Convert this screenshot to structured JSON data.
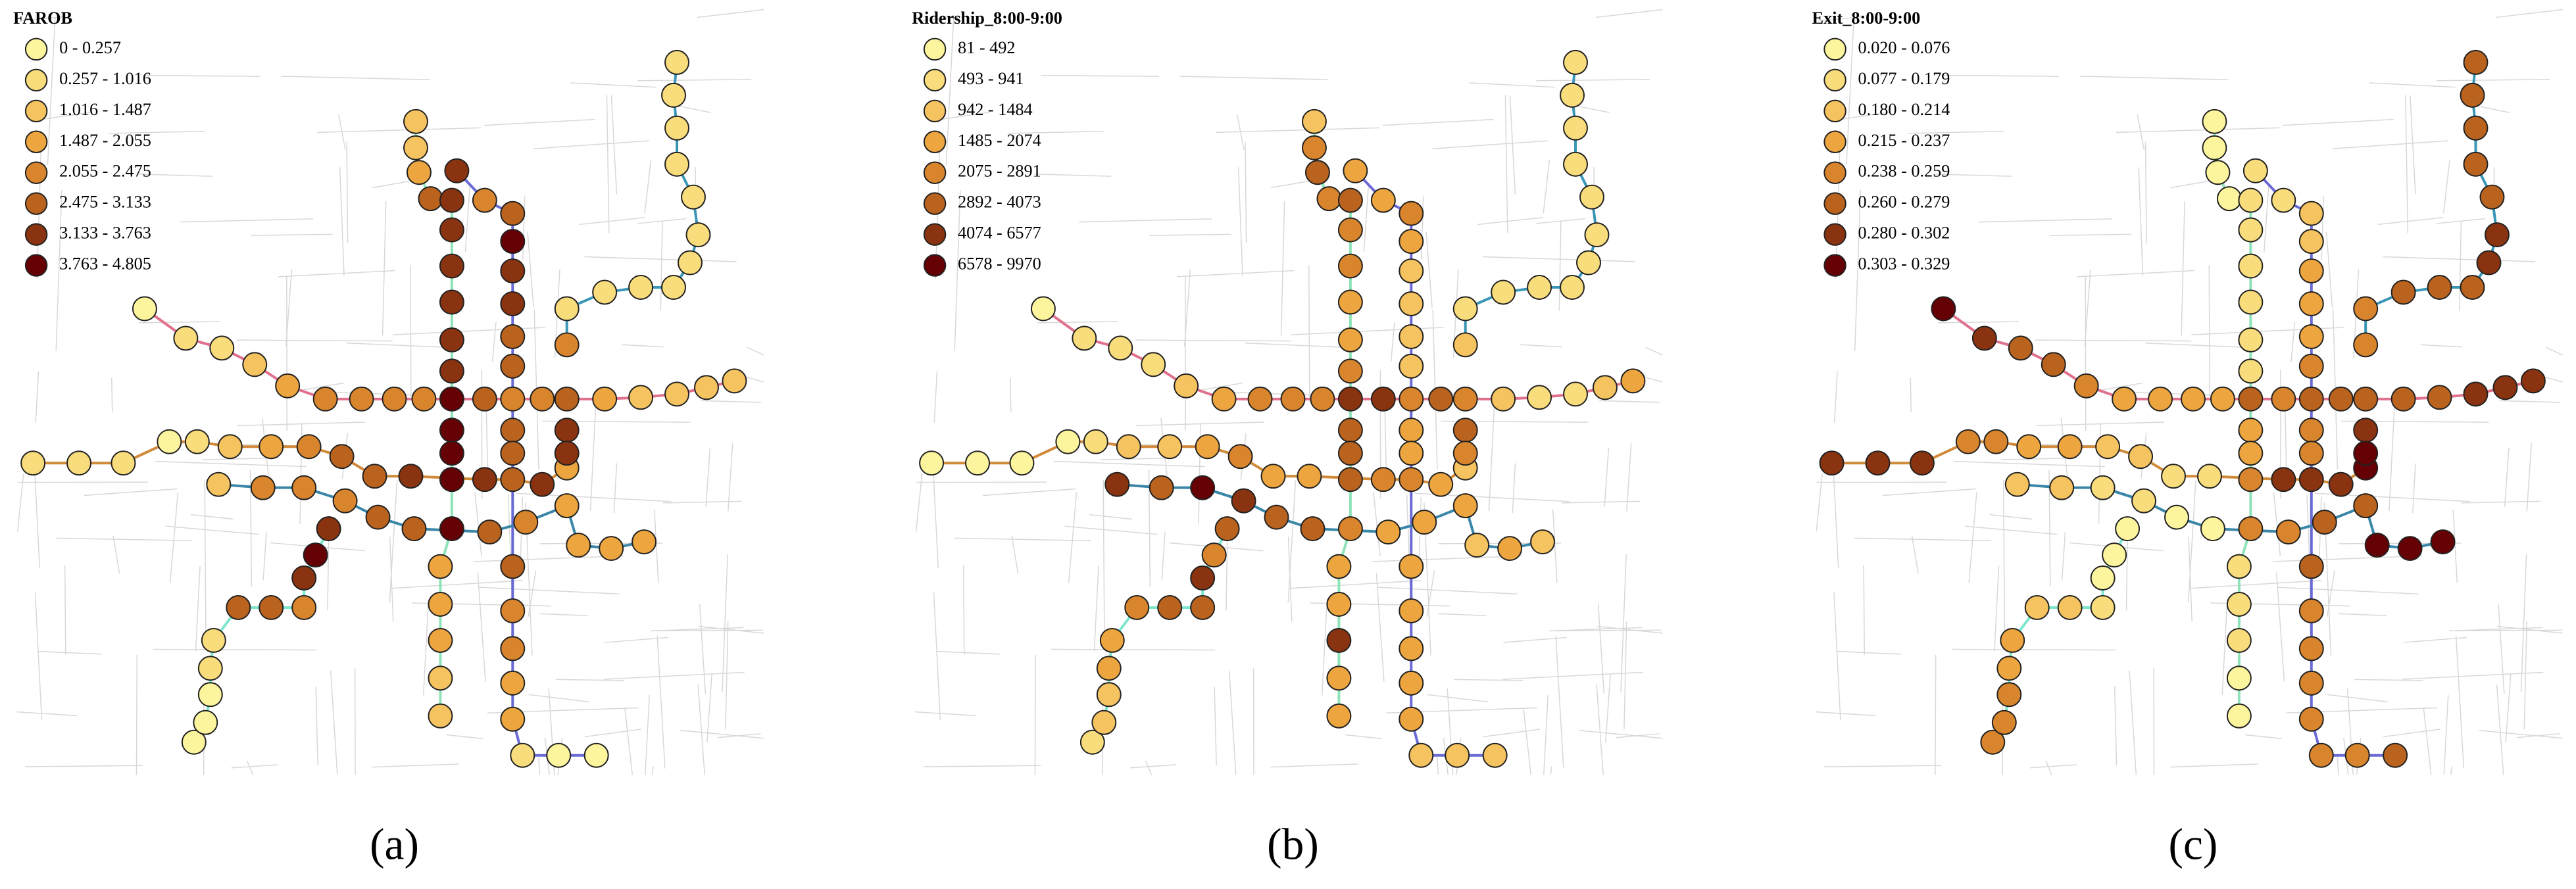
{
  "panels": [
    {
      "legend": {
        "title": "FAROB",
        "classes": [
          "0 - 0.257",
          "0.257 - 1.016",
          "1.016 - 1.487",
          "1.487 - 2.055",
          "2.055 - 2.475",
          "2.475 - 3.133",
          "3.133 - 3.763",
          "3.763 - 4.805"
        ]
      },
      "caption": "(a)",
      "station_classes": [
        0,
        1,
        1,
        2,
        3,
        4,
        4,
        4,
        4,
        7,
        5,
        4,
        4,
        5,
        3,
        2,
        2,
        2,
        2,
        2,
        2,
        3,
        5,
        6,
        6,
        6,
        6,
        6,
        6,
        7,
        7,
        7,
        7,
        3,
        3,
        3,
        2,
        2,
        6,
        4,
        5,
        7,
        6,
        6,
        5,
        5,
        5,
        5,
        5,
        4,
        4,
        3,
        3,
        1,
        0,
        0,
        1,
        1,
        1,
        0,
        1,
        2,
        3,
        4,
        5,
        5,
        6,
        6,
        5,
        6,
        3,
        2,
        4,
        4,
        4,
        5,
        5,
        5,
        4,
        3,
        3,
        3,
        3,
        0,
        0,
        0,
        1,
        1,
        5,
        5,
        4,
        6,
        7,
        6,
        4,
        1,
        1,
        1,
        1,
        1,
        1,
        1,
        1,
        1,
        1,
        1,
        6,
        6
      ]
    },
    {
      "legend": {
        "title": "Ridership_8:00-9:00",
        "classes": [
          "81 - 492",
          "493 - 941",
          "942 - 1484",
          "1485 - 2074",
          "2075 - 2891",
          "2892 - 4073",
          "4074 - 6577",
          "6578 - 9970"
        ]
      },
      "caption": "(b)",
      "station_classes": [
        0,
        1,
        1,
        1,
        2,
        3,
        4,
        4,
        4,
        6,
        6,
        4,
        5,
        4,
        2,
        1,
        1,
        2,
        3,
        2,
        4,
        5,
        4,
        5,
        4,
        4,
        3,
        3,
        4,
        5,
        5,
        5,
        4,
        3,
        3,
        6,
        3,
        3,
        3,
        3,
        4,
        3,
        2,
        2,
        2,
        2,
        3,
        3,
        3,
        3,
        3,
        3,
        3,
        2,
        2,
        2,
        0,
        0,
        0,
        0,
        1,
        2,
        2,
        3,
        4,
        3,
        3,
        4,
        4,
        3,
        2,
        6,
        5,
        7,
        6,
        5,
        5,
        3,
        3,
        3,
        2,
        3,
        2,
        1,
        2,
        2,
        3,
        3,
        4,
        5,
        5,
        6,
        4,
        5,
        2,
        1,
        1,
        1,
        1,
        1,
        1,
        1,
        1,
        1,
        1,
        1,
        5,
        4
      ]
    },
    {
      "legend": {
        "title": "Exit_8:00-9:00",
        "classes": [
          "0.020 - 0.076",
          "0.077 - 0.179",
          "0.180 - 0.214",
          "0.215 - 0.237",
          "0.238 - 0.259",
          "0.260 - 0.279",
          "0.280 - 0.302",
          "0.303 - 0.329"
        ]
      },
      "caption": "(c)",
      "station_classes": [
        7,
        6,
        5,
        5,
        4,
        3,
        3,
        3,
        3,
        5,
        4,
        5,
        5,
        5,
        5,
        5,
        6,
        6,
        6,
        0,
        0,
        0,
        0,
        1,
        1,
        1,
        1,
        1,
        1,
        3,
        3,
        4,
        4,
        1,
        1,
        1,
        0,
        0,
        1,
        1,
        2,
        2,
        3,
        3,
        3,
        4,
        4,
        4,
        5,
        4,
        4,
        4,
        4,
        4,
        4,
        5,
        6,
        6,
        6,
        4,
        4,
        3,
        3,
        2,
        2,
        1,
        1,
        6,
        6,
        6,
        7,
        2,
        2,
        1,
        1,
        0,
        0,
        4,
        5,
        5,
        7,
        7,
        7,
        4,
        4,
        4,
        3,
        3,
        2,
        2,
        1,
        0,
        0,
        0,
        4,
        4,
        5,
        5,
        5,
        6,
        6,
        5,
        5,
        5,
        5,
        5,
        6,
        7
      ]
    }
  ],
  "class_colors": [
    "#fdf59e",
    "#f9dd7c",
    "#f5c35f",
    "#eda53f",
    "#d9852d",
    "#b9631f",
    "#8a3310",
    "#650005"
  ]
}
